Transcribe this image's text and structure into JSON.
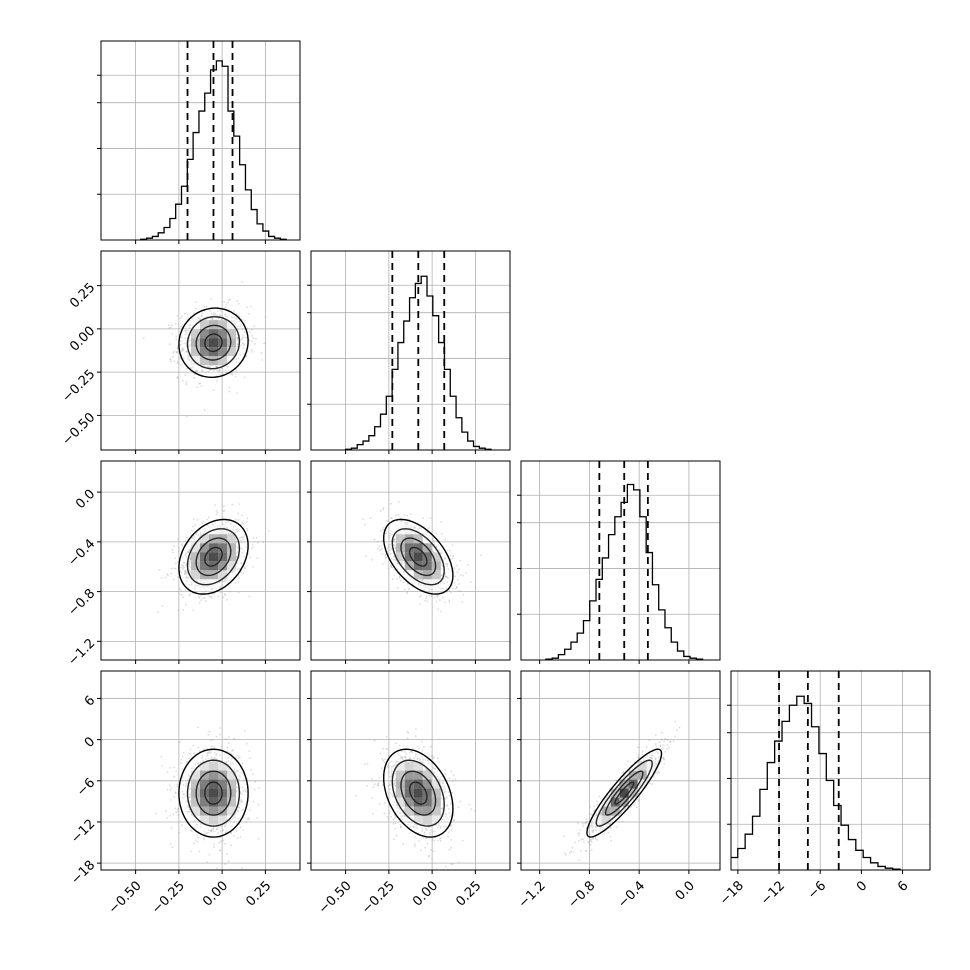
{
  "chart_data": {
    "type": "corner",
    "title": "",
    "parameters": [
      {
        "range": [
          -0.7,
          0.45
        ],
        "ticks": [
          -0.5,
          -0.25,
          0.0,
          0.25
        ],
        "tick_labels": [
          "−0.50",
          "−0.25",
          "0.00",
          "0.25"
        ],
        "mean": -0.05,
        "std": 0.1,
        "quantiles": [
          -0.2,
          -0.05,
          0.06
        ],
        "hist": [
          0.004,
          0.01,
          0.02,
          0.04,
          0.07,
          0.12,
          0.2,
          0.3,
          0.45,
          0.6,
          0.72,
          0.82,
          0.95,
          1.0,
          0.97,
          0.72,
          0.58,
          0.42,
          0.28,
          0.17,
          0.09,
          0.05,
          0.02,
          0.01,
          0.004
        ]
      },
      {
        "range": [
          -0.7,
          0.45
        ],
        "ticks": [
          -0.5,
          -0.25,
          0.0,
          0.25
        ],
        "tick_labels": [
          "−0.50",
          "−0.25",
          "0.00",
          "0.25"
        ],
        "mean": -0.08,
        "std": 0.1,
        "quantiles": [
          -0.23,
          -0.08,
          0.07
        ],
        "hist": [
          0.004,
          0.01,
          0.03,
          0.05,
          0.08,
          0.13,
          0.2,
          0.3,
          0.45,
          0.6,
          0.72,
          0.85,
          0.93,
          0.97,
          0.86,
          0.75,
          0.6,
          0.45,
          0.3,
          0.18,
          0.1,
          0.05,
          0.02,
          0.01,
          0.004
        ]
      },
      {
        "range": [
          -1.35,
          0.25
        ],
        "ticks": [
          -1.2,
          -0.8,
          -0.4,
          0.0
        ],
        "tick_labels": [
          "−1.2",
          "−0.8",
          "−0.4",
          "0.0"
        ],
        "mean": -0.52,
        "std": 0.15,
        "quantiles": [
          -0.72,
          -0.52,
          -0.33
        ],
        "hist": [
          0.005,
          0.01,
          0.03,
          0.06,
          0.1,
          0.15,
          0.22,
          0.33,
          0.45,
          0.57,
          0.7,
          0.8,
          0.88,
          0.98,
          0.95,
          0.8,
          0.6,
          0.42,
          0.28,
          0.18,
          0.1,
          0.05,
          0.02,
          0.01,
          0.005
        ]
      },
      {
        "range": [
          -19,
          10
        ],
        "ticks": [
          -18,
          -12,
          -6,
          0,
          6
        ],
        "tick_labels": [
          "−18",
          "−12",
          "−6",
          "0",
          "6"
        ],
        "mean": -7.8,
        "std": 3.2,
        "quantiles": [
          -12,
          -7.8,
          -3.3
        ],
        "hist": [
          0.01,
          0.03,
          0.07,
          0.12,
          0.2,
          0.3,
          0.45,
          0.6,
          0.72,
          0.83,
          0.92,
          0.97,
          0.93,
          0.8,
          0.65,
          0.5,
          0.36,
          0.25,
          0.17,
          0.11,
          0.07,
          0.04,
          0.02,
          0.01,
          0.005
        ]
      }
    ],
    "correlations": [
      [
        1,
        0.05,
        0.3,
        0.0
      ],
      [
        0.05,
        1,
        -0.5,
        -0.35
      ],
      [
        0.3,
        -0.5,
        1,
        0.9
      ],
      [
        0.0,
        -0.35,
        0.9,
        1
      ]
    ],
    "contour_levels_sigma": [
      0.5,
      1.0,
      1.5,
      2.0
    ],
    "grid": true,
    "quantile_line_style": "dashed"
  },
  "colors": {
    "axis": "#000000",
    "grid": "#b0b0b0",
    "density": "#000000",
    "scatter": "#9a9a9a"
  }
}
